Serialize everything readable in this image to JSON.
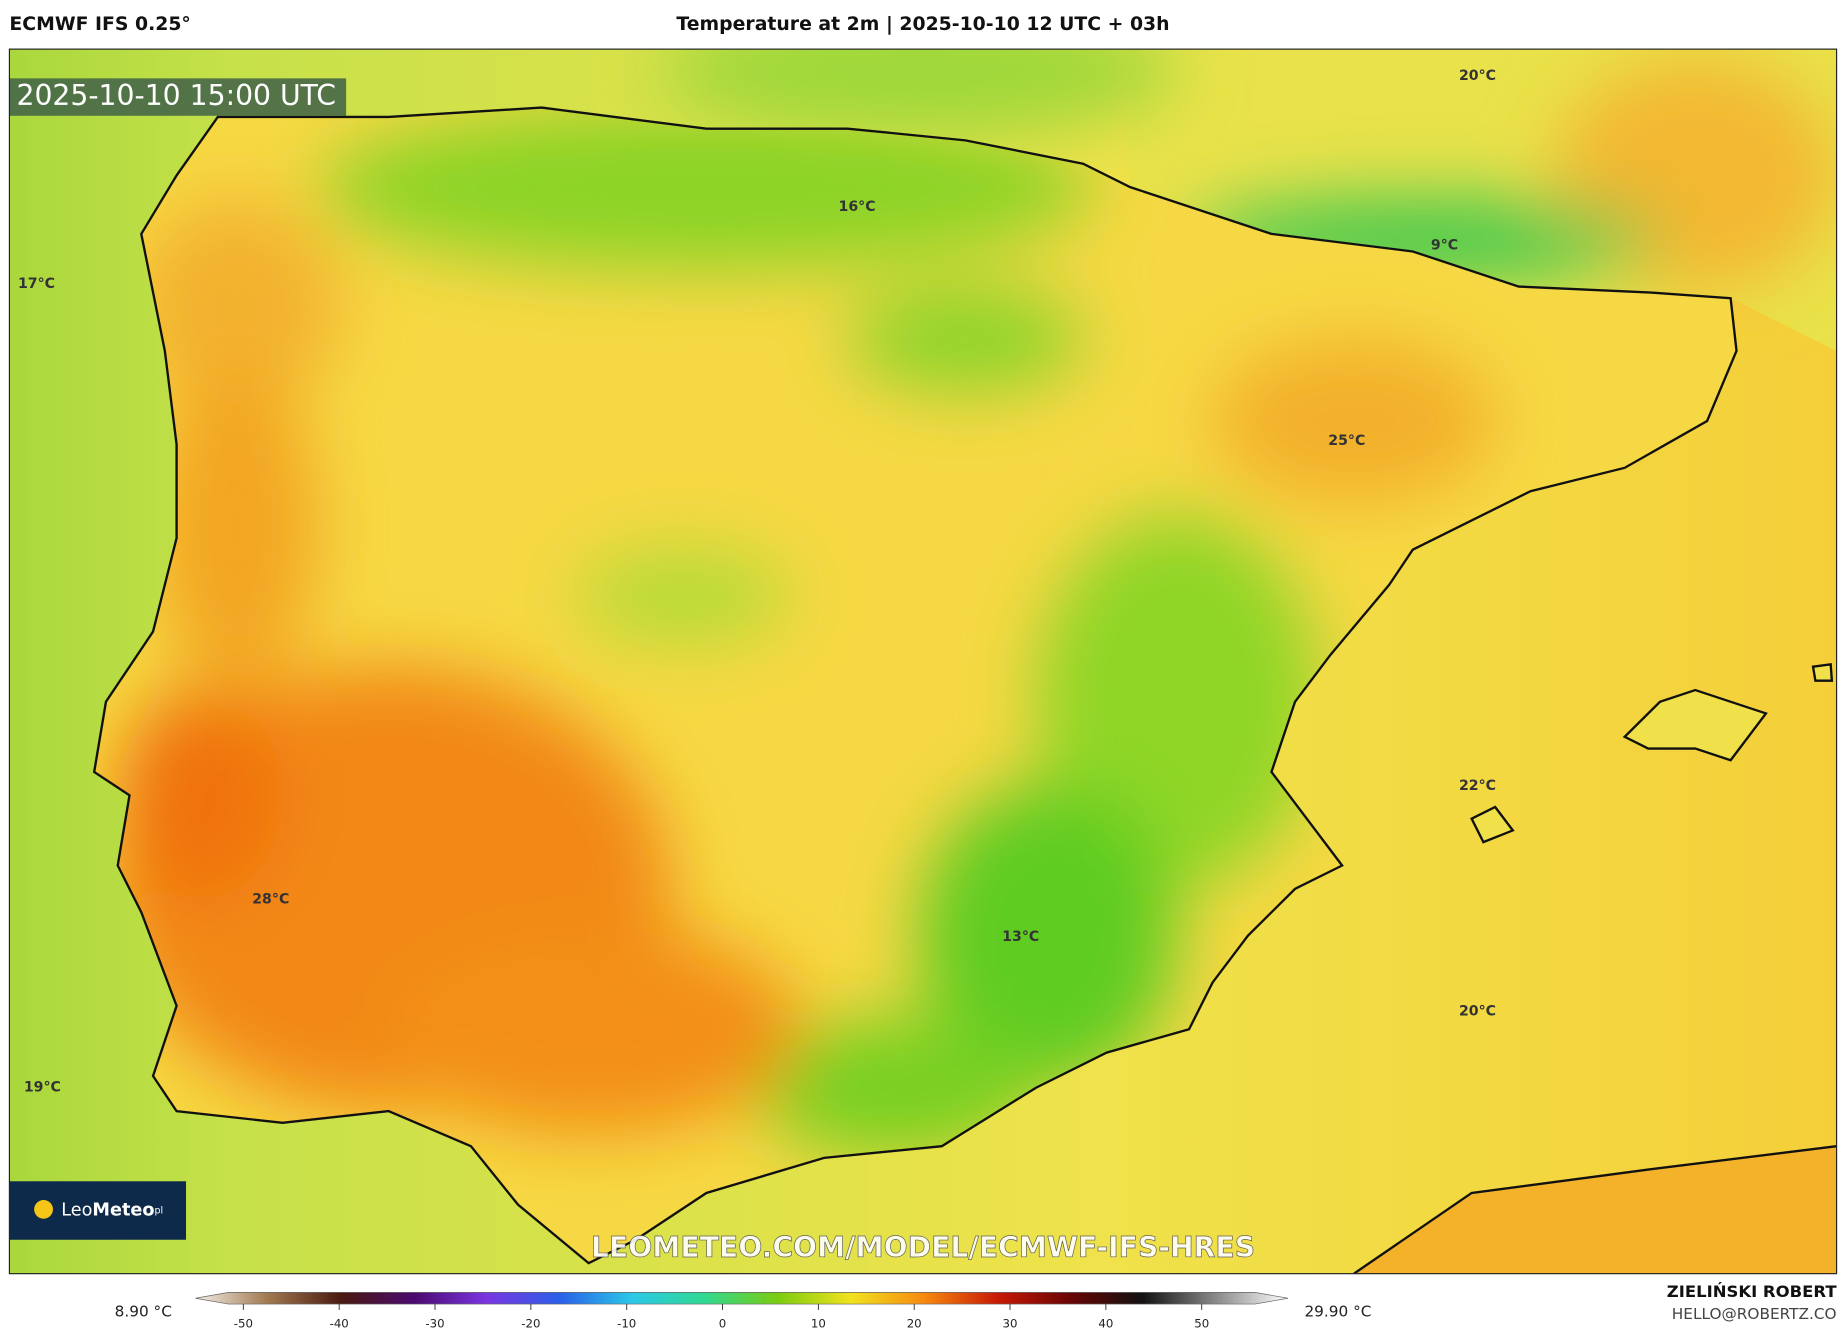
{
  "header": {
    "model": "ECMWF IFS 0.25°",
    "title": "Temperature at 2m | 2025-10-10 12 UTC + 03h"
  },
  "map": {
    "timestamp": "2025-10-10 15:00 UTC",
    "labels": [
      "20°C",
      "16°C",
      "9°C",
      "17°C",
      "25°C",
      "22°C",
      "28°C",
      "13°C",
      "20°C",
      "19°C"
    ],
    "watermark": "LEOMETEO.COM/MODEL/ECMWF-IFS-HRES",
    "logo": {
      "a": "Leo",
      "b": "Meteo",
      "c": "pl"
    }
  },
  "colorbar": {
    "min_label": "8.90 °C",
    "max_label": "29.90 °C",
    "lim": [
      -55,
      59
    ],
    "ticks": [
      -50,
      -40,
      -30,
      -20,
      -10,
      0,
      10,
      20,
      30,
      40,
      50
    ],
    "colors": [
      "#f4efe6",
      "#a07850",
      "#4a1a10",
      "#4b0a6e",
      "#7a35e0",
      "#2a60e8",
      "#2cc8e8",
      "#30d890",
      "#7ccc10",
      "#f2e21e",
      "#f78a10",
      "#c81a05",
      "#6a0505",
      "#111111",
      "#888888",
      "#ffffff"
    ]
  },
  "credits": {
    "author": "ZIELIŃSKI ROBERT",
    "email": "HELLO@ROBERTZ.CO"
  }
}
